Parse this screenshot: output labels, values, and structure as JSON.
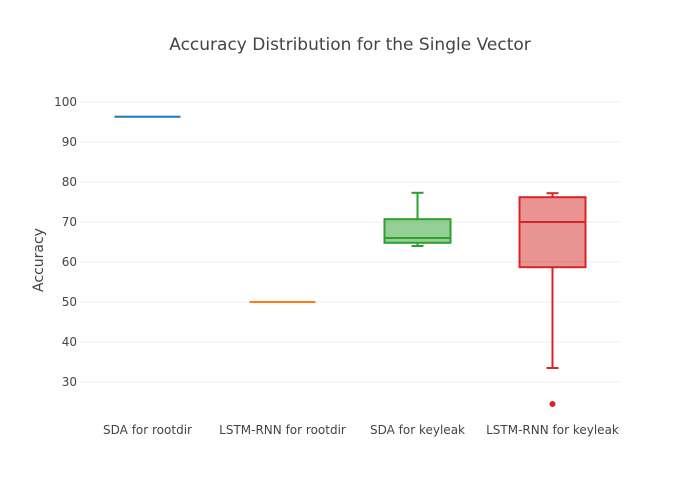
{
  "chart_data": {
    "type": "box",
    "title": "Accuracy Distribution for the Single Vector",
    "xlabel": "",
    "ylabel": "Accuracy",
    "ylim": [
      20,
      102
    ],
    "yticks": [
      30,
      40,
      50,
      60,
      70,
      80,
      90,
      100
    ],
    "grid": true,
    "legend": "none",
    "categories": [
      "SDA for rootdir",
      "LSTM-RNN for rootdir",
      "SDA for keyleak",
      "LSTM-RNN for keyleak"
    ],
    "boxes": [
      {
        "category": "SDA for rootdir",
        "min": 96.3,
        "q1": 96.3,
        "median": 96.3,
        "q3": 96.3,
        "max": 96.3,
        "outliers": [],
        "color": "#1f77b4"
      },
      {
        "category": "LSTM-RNN for rootdir",
        "min": 50,
        "q1": 50,
        "median": 50,
        "q3": 50,
        "max": 50,
        "outliers": [],
        "color": "#ff7f0e"
      },
      {
        "category": "SDA for keyleak",
        "min": 64,
        "q1": 64.8,
        "median": 66,
        "q3": 70.7,
        "max": 77.3,
        "outliers": [],
        "color": "#2ca02c"
      },
      {
        "category": "LSTM-RNN for keyleak",
        "min": 33.5,
        "q1": 58.7,
        "median": 70,
        "q3": 76.2,
        "max": 77.2,
        "outliers": [
          24.5
        ],
        "color": "#d62728"
      }
    ]
  }
}
